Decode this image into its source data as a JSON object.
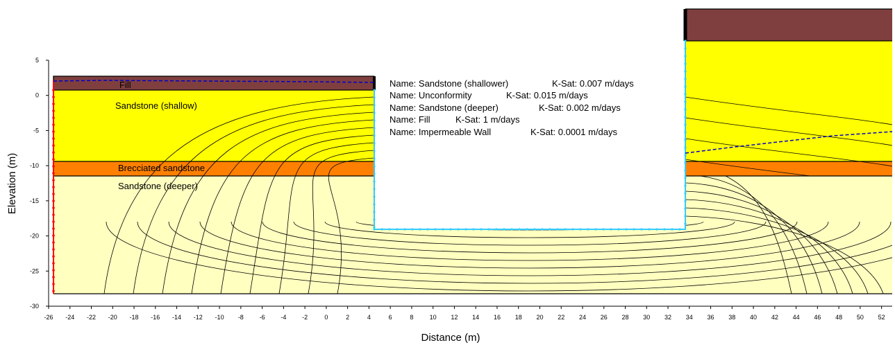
{
  "chart_data": {
    "type": "seepage-section",
    "xlabel": "Distance (m)",
    "ylabel": "Elevation (m)",
    "xlim": [
      -26,
      53
    ],
    "xticks": [
      -26,
      -24,
      -22,
      -20,
      -18,
      -16,
      -14,
      -12,
      -10,
      -8,
      -6,
      -4,
      -2,
      0,
      2,
      4,
      6,
      8,
      10,
      12,
      14,
      16,
      18,
      20,
      22,
      24,
      26,
      28,
      30,
      32,
      34,
      36,
      38,
      40,
      42,
      44,
      46,
      48,
      50,
      52
    ],
    "ylim": [
      -30,
      5
    ],
    "yticks": [
      5,
      0,
      -5,
      -10,
      -15,
      -20,
      -25,
      -30
    ],
    "region_labels": [
      "Fill",
      "Sandstone (shallow)",
      "Brecciated sandstone",
      "Sandstone (deeper)"
    ],
    "materials": [
      {
        "name": "Name: Sandstone (shallower)",
        "ksat": "K-Sat: 0.007 m/days"
      },
      {
        "name": "Name: Unconformity",
        "ksat": "K-Sat: 0.015 m/days"
      },
      {
        "name": "Name: Sandstone (deeper)",
        "ksat": "K-Sat: 0.002 m/days"
      },
      {
        "name": "Name: Fill",
        "ksat": "K-Sat: 1 m/days"
      },
      {
        "name": "Name: Impermeable Wall",
        "ksat": "K-Sat: 0.0001 m/days"
      }
    ]
  }
}
